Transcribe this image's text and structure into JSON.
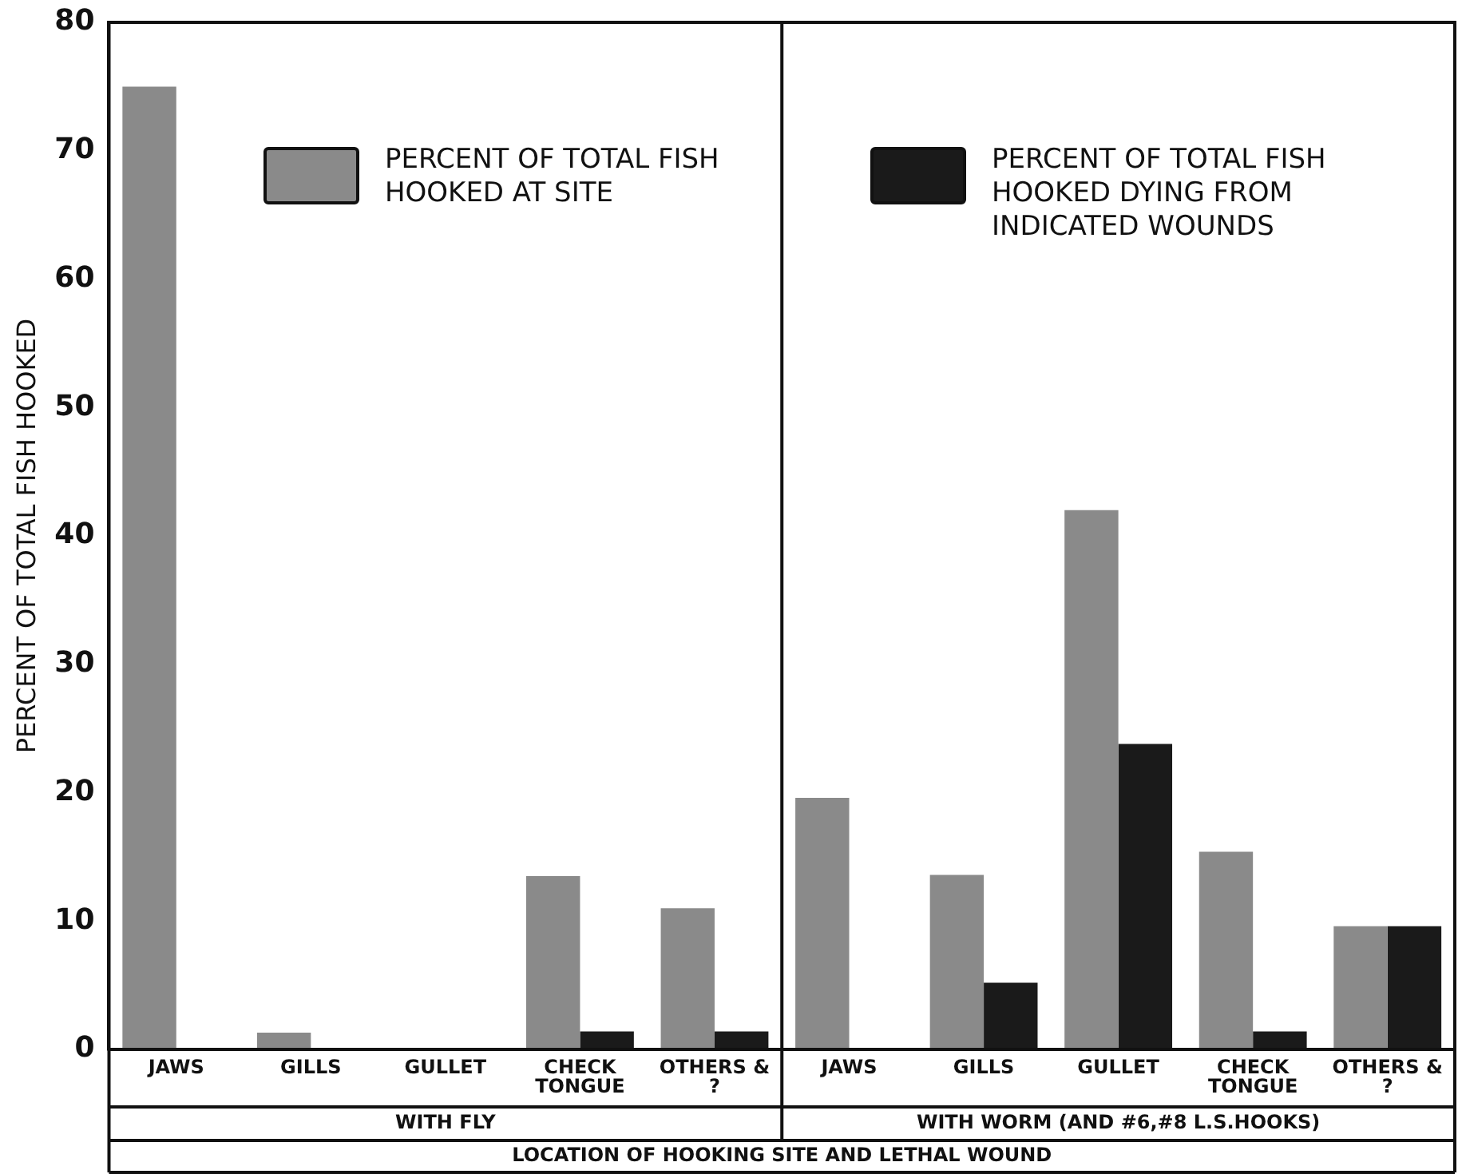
{
  "chart_data": {
    "type": "bar",
    "ylabel": "PERCENT OF TOTAL FISH HOOKED",
    "xlabel": "LOCATION OF HOOKING SITE AND LETHAL WOUND",
    "categories": [
      "JAWS",
      "GILLS",
      "GULLET",
      "CHECK\nTONGUE",
      "OTHERS &\n?",
      "JAWS",
      "GILLS",
      "GULLET",
      "CHECK\nTONGUE",
      "OTHERS &\n?"
    ],
    "annotations": [
      "WITH FLY",
      "WITH WORM (AND #6,#8 L.S.HOOKS)"
    ],
    "series": [
      {
        "name": "PERCENT OF TOTAL FISH HOOKED AT SITE",
        "color": "#8a8a8a",
        "values": [
          75,
          1.3,
          null,
          13.5,
          11,
          19.6,
          13.6,
          42,
          15.4,
          9.6
        ]
      },
      {
        "name": "PERCENT OF TOTAL FISH HOOKED DYING FROM INDICATED WOUNDS",
        "color": "#1a1a1a",
        "values": [
          null,
          null,
          null,
          1.4,
          1.4,
          null,
          5.2,
          23.8,
          1.4,
          9.6
        ]
      }
    ],
    "ylim": [
      0,
      80
    ],
    "yticks": [
      0,
      10,
      20,
      30,
      40,
      50,
      60,
      70,
      80
    ],
    "grid": false,
    "legend": "top"
  }
}
